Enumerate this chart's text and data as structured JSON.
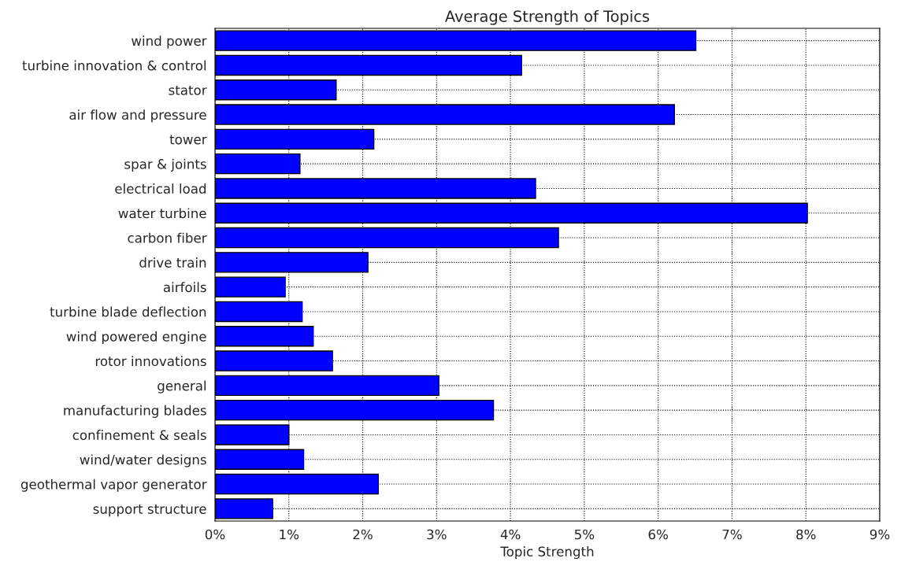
{
  "chart_data": {
    "type": "bar",
    "orientation": "horizontal",
    "title": "Average Strength of Topics",
    "xlabel": "Topic Strength",
    "categories": [
      "wind power",
      "turbine innovation & control",
      "stator",
      "air flow and pressure",
      "tower",
      "spar & joints",
      "electrical load",
      "water turbine",
      "carbon fiber",
      "drive train",
      "airfoils",
      "turbine blade deflection",
      "wind powered engine",
      "rotor innovations",
      "general",
      "manufacturing blades",
      "confinement & seals",
      "wind/water designs",
      "geothermal vapor generator",
      "support structure"
    ],
    "values": [
      6.51,
      4.15,
      1.64,
      6.22,
      2.15,
      1.15,
      4.34,
      8.02,
      4.65,
      2.07,
      0.95,
      1.18,
      1.33,
      1.59,
      3.03,
      3.77,
      1.0,
      1.2,
      2.21,
      0.78
    ],
    "color": "#0000ff",
    "xlim": [
      0,
      9
    ],
    "xticks": [
      {
        "value": 0,
        "label": "0%"
      },
      {
        "value": 1,
        "label": "1%"
      },
      {
        "value": 2,
        "label": "2%"
      },
      {
        "value": 3,
        "label": "3%"
      },
      {
        "value": 4,
        "label": "4%"
      },
      {
        "value": 5,
        "label": "5%"
      },
      {
        "value": 6,
        "label": "6%"
      },
      {
        "value": 7,
        "label": "7%"
      },
      {
        "value": 8,
        "label": "8%"
      },
      {
        "value": 9,
        "label": "9%"
      }
    ],
    "grid": true,
    "legend": false
  }
}
